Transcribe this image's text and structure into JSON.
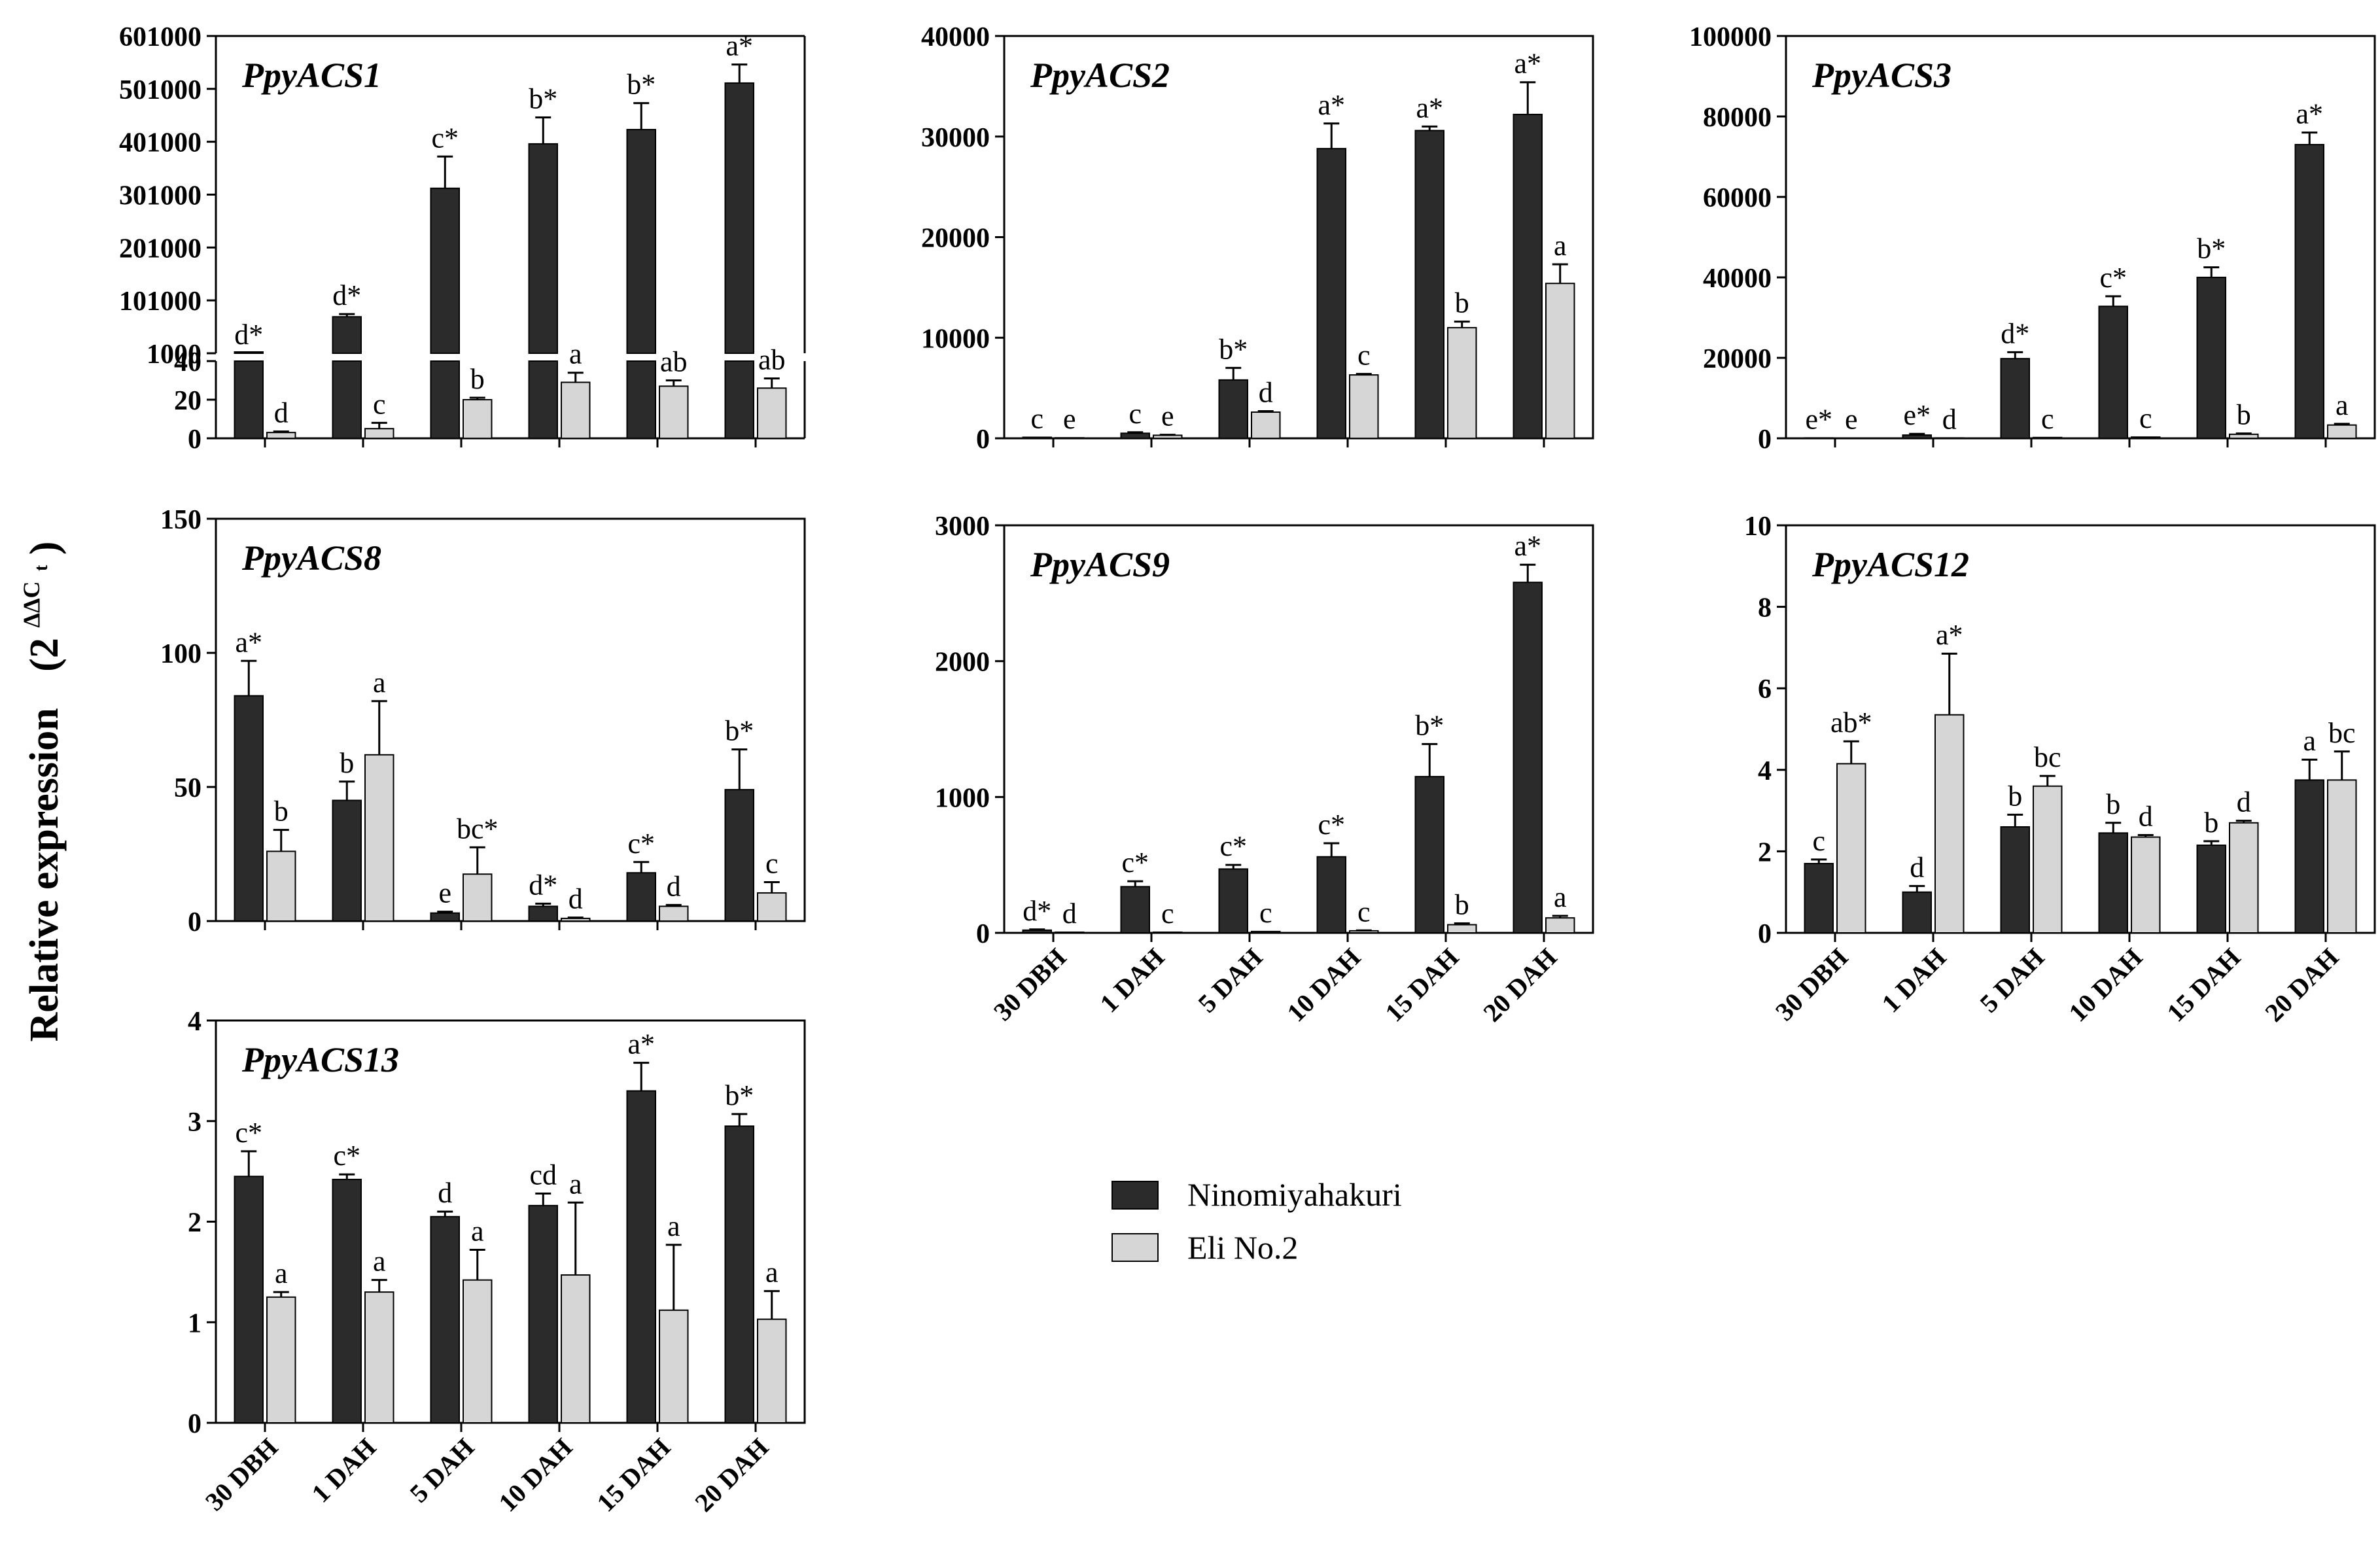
{
  "figure": {
    "y_axis_label": "Relative expression",
    "y_axis_unit": "(2",
    "y_axis_exponent": "ΔΔC",
    "y_axis_subscript": "t",
    "y_axis_close": ")"
  },
  "legend": {
    "items": [
      {
        "label": "Ninomiyahakuri",
        "color": "#2b2b2b"
      },
      {
        "label": "Eli No.2",
        "color": "#d6d6d6"
      }
    ]
  },
  "colors": {
    "series1": "#2b2b2b",
    "series2": "#d6d6d6",
    "axis": "#000000"
  },
  "chart_data": [
    {
      "type": "bar",
      "title": "PpyACS1",
      "categories": [
        "30 DBH",
        "1 DAH",
        "5 DAH",
        "10 DAH",
        "15 DAH",
        "20 DAH"
      ],
      "broken_axis": true,
      "lower_range": [
        0,
        40
      ],
      "lower_ticks": [
        "0",
        "20",
        "40"
      ],
      "upper_range": [
        1000,
        601000
      ],
      "upper_ticks": [
        "1000",
        "101000",
        "201000",
        "301000",
        "401000",
        "501000",
        "601000"
      ],
      "series": [
        {
          "name": "Ninomiyahakuri",
          "values": [
            1000,
            70000,
            313000,
            397000,
            424000,
            512000
          ],
          "errors": [
            0,
            5000,
            60000,
            50000,
            50000,
            35000
          ],
          "labels": [
            "d*",
            "d*",
            "c*",
            "b*",
            "b*",
            "a*"
          ]
        },
        {
          "name": "Eli No.2",
          "values": [
            3,
            5,
            20,
            29,
            27,
            26
          ],
          "errors": [
            0.5,
            3,
            1,
            5,
            3,
            5
          ],
          "labels": [
            "d",
            "c",
            "b",
            "a",
            "ab",
            "ab"
          ]
        }
      ]
    },
    {
      "type": "bar",
      "title": "PpyACS2",
      "categories": [
        "30 DBH",
        "1 DAH",
        "5 DAH",
        "10 DAH",
        "15 DAH",
        "20 DAH"
      ],
      "ylim": [
        0,
        40000
      ],
      "yticks": [
        "0",
        "10000",
        "20000",
        "30000",
        "40000"
      ],
      "series": [
        {
          "name": "Ninomiyahakuri",
          "values": [
            100,
            500,
            5800,
            28800,
            30600,
            32200
          ],
          "errors": [
            0,
            100,
            1200,
            2500,
            400,
            3200
          ],
          "labels": [
            "c",
            "c",
            "b*",
            "a*",
            "a*",
            "a*"
          ]
        },
        {
          "name": "Eli No.2",
          "values": [
            50,
            300,
            2600,
            6300,
            11000,
            15400
          ],
          "errors": [
            0,
            50,
            100,
            100,
            600,
            1900
          ],
          "labels": [
            "e",
            "e",
            "d",
            "c",
            "b",
            "a"
          ]
        }
      ]
    },
    {
      "type": "bar",
      "title": "PpyACS3",
      "categories": [
        "30 DBH",
        "1 DAH",
        "5 DAH",
        "10 DAH",
        "15 DAH",
        "20 DAH"
      ],
      "ylim": [
        0,
        100000
      ],
      "yticks": [
        "0",
        "20000",
        "40000",
        "60000",
        "80000",
        "100000"
      ],
      "series": [
        {
          "name": "Ninomiyahakuri",
          "values": [
            100,
            800,
            19800,
            32800,
            40000,
            73000
          ],
          "errors": [
            0,
            300,
            1600,
            2500,
            2500,
            3000
          ],
          "labels": [
            "e*",
            "e*",
            "d*",
            "c*",
            "b*",
            "a*"
          ]
        },
        {
          "name": "Eli No.2",
          "values": [
            50,
            100,
            200,
            300,
            1000,
            3300
          ],
          "errors": [
            0,
            0,
            0,
            0,
            200,
            300
          ],
          "labels": [
            "e",
            "d",
            "c",
            "c",
            "b",
            "a"
          ]
        }
      ]
    },
    {
      "type": "bar",
      "title": "PpyACS8",
      "categories": [
        "30 DBH",
        "1 DAH",
        "5 DAH",
        "10 DAH",
        "15 DAH",
        "20 DAH"
      ],
      "ylim": [
        0,
        150
      ],
      "yticks": [
        "0",
        "50",
        "100",
        "150"
      ],
      "series": [
        {
          "name": "Ninomiyahakuri",
          "values": [
            84,
            45,
            3,
            5.5,
            18,
            49
          ],
          "errors": [
            13,
            7,
            0.5,
            1,
            4,
            15
          ],
          "labels": [
            "a*",
            "b",
            "e",
            "d*",
            "c*",
            "b*"
          ]
        },
        {
          "name": "Eli No.2",
          "values": [
            26,
            62,
            17.5,
            1,
            5.5,
            10.5
          ],
          "errors": [
            8,
            20,
            10,
            0.3,
            0.5,
            4
          ],
          "labels": [
            "b",
            "a",
            "bc*",
            "d",
            "d",
            "c"
          ]
        }
      ]
    },
    {
      "type": "bar",
      "title": "PpyACS9",
      "categories": [
        "30 DBH",
        "1 DAH",
        "5 DAH",
        "10 DAH",
        "15 DAH",
        "20 DAH"
      ],
      "ylim": [
        0,
        3000
      ],
      "yticks": [
        "0",
        "1000",
        "2000",
        "3000"
      ],
      "series": [
        {
          "name": "Ninomiyahakuri",
          "values": [
            20,
            340,
            470,
            560,
            1150,
            2580
          ],
          "errors": [
            5,
            40,
            30,
            100,
            240,
            130
          ],
          "labels": [
            "d*",
            "c*",
            "c*",
            "c*",
            "b*",
            "a*"
          ]
        },
        {
          "name": "Eli No.2",
          "values": [
            5,
            5,
            10,
            15,
            60,
            110
          ],
          "errors": [
            0,
            0,
            0,
            3,
            10,
            15
          ],
          "labels": [
            "d",
            "c",
            "c",
            "c",
            "b",
            "a"
          ]
        }
      ]
    },
    {
      "type": "bar",
      "title": "PpyACS12",
      "categories": [
        "30 DBH",
        "1 DAH",
        "5 DAH",
        "10 DAH",
        "15 DAH",
        "20 DAH"
      ],
      "ylim": [
        0,
        10
      ],
      "yticks": [
        "0",
        "2",
        "4",
        "6",
        "8",
        "10"
      ],
      "series": [
        {
          "name": "Ninomiyahakuri",
          "values": [
            1.7,
            1.0,
            2.6,
            2.45,
            2.15,
            3.75
          ],
          "errors": [
            0.1,
            0.15,
            0.3,
            0.25,
            0.1,
            0.5
          ],
          "labels": [
            "c",
            "d",
            "b",
            "b",
            "b",
            "a"
          ]
        },
        {
          "name": "Eli No.2",
          "values": [
            4.15,
            5.35,
            3.6,
            2.35,
            2.7,
            3.75
          ],
          "errors": [
            0.55,
            1.5,
            0.25,
            0.05,
            0.05,
            0.7
          ],
          "labels": [
            "ab*",
            "a*",
            "bc",
            "d",
            "d",
            "bc"
          ]
        }
      ]
    },
    {
      "type": "bar",
      "title": "PpyACS13",
      "categories": [
        "30 DBH",
        "1 DAH",
        "5 DAH",
        "10 DAH",
        "15 DAH",
        "20 DAH"
      ],
      "ylim": [
        0,
        4
      ],
      "yticks": [
        "0",
        "1",
        "2",
        "3",
        "4"
      ],
      "series": [
        {
          "name": "Ninomiyahakuri",
          "values": [
            2.45,
            2.42,
            2.05,
            2.16,
            3.3,
            2.95
          ],
          "errors": [
            0.25,
            0.05,
            0.05,
            0.12,
            0.28,
            0.12
          ],
          "labels": [
            "c*",
            "c*",
            "d",
            "cd",
            "a*",
            "b*"
          ]
        },
        {
          "name": "Eli No.2",
          "values": [
            1.25,
            1.3,
            1.42,
            1.47,
            1.12,
            1.03
          ],
          "errors": [
            0.05,
            0.12,
            0.3,
            0.72,
            0.65,
            0.28
          ],
          "labels": [
            "a",
            "a",
            "a",
            "a",
            "a",
            "a"
          ]
        }
      ]
    }
  ]
}
